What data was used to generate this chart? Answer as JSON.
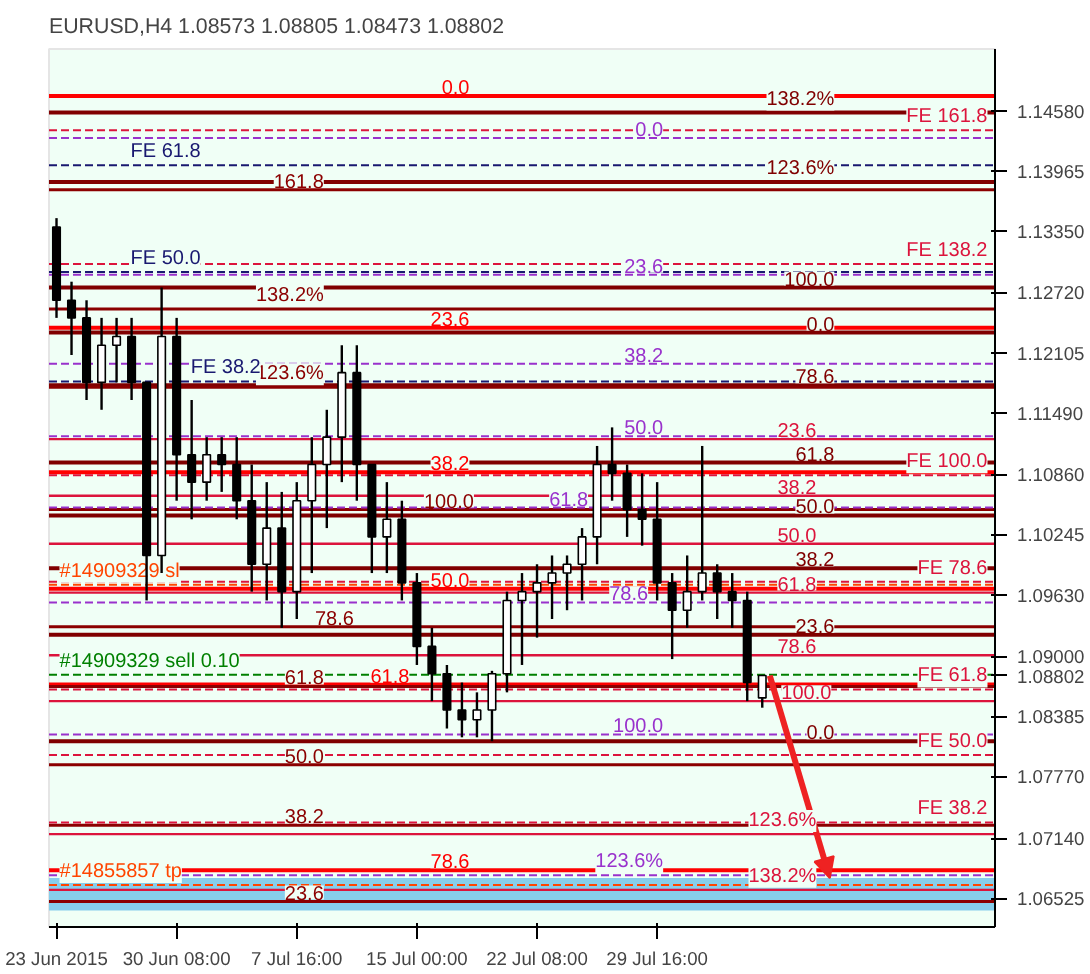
{
  "chart_data": {
    "type": "candlestick",
    "title": "EURUSD,H4  1.08573 1.08805 1.08473 1.08802",
    "categories": [
      "23 Jun 2015",
      null,
      null,
      null,
      null,
      null,
      null,
      null,
      "30 Jun 08:00",
      null,
      null,
      null,
      null,
      null,
      null,
      null,
      "7 Jul 16:00",
      null,
      null,
      null,
      null,
      null,
      null,
      null,
      "15 Jul 00:00",
      null,
      null,
      null,
      null,
      null,
      null,
      null,
      "22 Jul 08:00",
      null,
      null,
      null,
      null,
      null,
      null,
      null,
      "29 Jul 16:00",
      null,
      null,
      null,
      null,
      null,
      null,
      null,
      null,
      null,
      null,
      null,
      null,
      null,
      null,
      null,
      null,
      null,
      null,
      null,
      null,
      null,
      null
    ],
    "ohlc": [
      [
        1.1339,
        1.1348,
        1.1246,
        1.1264
      ],
      [
        1.1264,
        1.1283,
        1.1208,
        1.1246
      ],
      [
        1.1246,
        1.1264,
        1.1162,
        1.118
      ],
      [
        1.118,
        1.1246,
        1.1152,
        1.1218
      ],
      [
        1.1218,
        1.1246,
        1.118,
        1.1227
      ],
      [
        1.1227,
        1.1246,
        1.1162,
        1.118
      ],
      [
        1.118,
        1.118,
        1.0957,
        1.1003
      ],
      [
        1.1003,
        1.1277,
        1.0985,
        1.1227
      ],
      [
        1.1227,
        1.1246,
        1.1059,
        1.1106
      ],
      [
        1.1106,
        1.1162,
        1.104,
        1.1078
      ],
      [
        1.1078,
        1.1124,
        1.1059,
        1.1106
      ],
      [
        1.1106,
        1.1124,
        1.1068,
        1.1096
      ],
      [
        1.1096,
        1.1124,
        1.104,
        1.1059
      ],
      [
        1.1059,
        1.1096,
        1.0966,
        1.0994
      ],
      [
        1.0994,
        1.1078,
        1.0957,
        1.1031
      ],
      [
        1.1031,
        1.1068,
        1.0929,
        1.0966
      ],
      [
        1.0966,
        1.1078,
        1.0938,
        1.1059
      ],
      [
        1.1059,
        1.1124,
        1.0985,
        1.1096
      ],
      [
        1.1096,
        1.1152,
        1.1031,
        1.1124
      ],
      [
        1.1124,
        1.1218,
        1.1078,
        1.119
      ],
      [
        1.119,
        1.1218,
        1.1059,
        1.1096
      ],
      [
        1.1096,
        1.1096,
        1.0985,
        1.1022
      ],
      [
        1.1022,
        1.1078,
        1.0985,
        1.104
      ],
      [
        1.104,
        1.1059,
        1.0957,
        1.0975
      ],
      [
        1.0975,
        1.0985,
        1.0891,
        1.091
      ],
      [
        1.091,
        1.0929,
        1.0854,
        1.0882
      ],
      [
        1.0882,
        1.0891,
        1.0826,
        1.0845
      ],
      [
        1.0845,
        1.0873,
        1.0817,
        1.0835
      ],
      [
        1.0835,
        1.0863,
        1.0817,
        1.0845
      ],
      [
        1.0845,
        1.0885,
        1.0813,
        1.0882
      ],
      [
        1.0882,
        1.0966,
        1.0863,
        1.0957
      ],
      [
        1.0957,
        1.0985,
        1.0891,
        1.0966
      ],
      [
        1.0966,
        1.0994,
        1.0919,
        1.0975
      ],
      [
        1.0975,
        1.1003,
        1.0938,
        1.0985
      ],
      [
        1.0985,
        1.1003,
        1.0947,
        1.0994
      ],
      [
        1.0994,
        1.1031,
        1.0957,
        1.1022
      ],
      [
        1.1022,
        1.1115,
        1.0994,
        1.1096
      ],
      [
        1.1096,
        1.1134,
        1.1059,
        1.1087
      ],
      [
        1.1087,
        1.1096,
        1.1022,
        1.105
      ],
      [
        1.105,
        1.1087,
        1.1013,
        1.104
      ],
      [
        1.104,
        1.1078,
        1.0957,
        1.0975
      ],
      [
        1.0975,
        1.0985,
        1.0897,
        1.0947
      ],
      [
        1.0947,
        1.1003,
        1.0929,
        1.0966
      ],
      [
        1.0966,
        1.1115,
        1.0957,
        1.0985
      ],
      [
        1.0985,
        1.0994,
        1.0938,
        1.0966
      ],
      [
        1.0966,
        1.0985,
        1.0929,
        1.0957
      ],
      [
        1.0957,
        1.0966,
        1.0854,
        1.0873
      ],
      [
        1.08573,
        1.08805,
        1.08473,
        1.08802
      ],
      null,
      null,
      null,
      null,
      null,
      null,
      null,
      null,
      null,
      null,
      null,
      null,
      null,
      null,
      null
    ],
    "ylim": [
      1.0623,
      1.1521
    ],
    "yticks": [
      {
        "value": 1.1458,
        "label": "1.14580"
      },
      {
        "value": 1.13965,
        "label": "1.13965"
      },
      {
        "value": 1.1335,
        "label": "1.13350"
      },
      {
        "value": 1.1272,
        "label": "1.12720"
      },
      {
        "value": 1.12105,
        "label": "1.12105"
      },
      {
        "value": 1.1149,
        "label": "1.11490"
      },
      {
        "value": 1.1086,
        "label": "1.10860"
      },
      {
        "value": 1.10245,
        "label": "1.10245"
      },
      {
        "value": 1.0963,
        "label": "1.09630"
      },
      {
        "value": 1.09,
        "label": "1.09000"
      },
      {
        "value": 1.08802,
        "label": "1.08802"
      },
      {
        "value": 1.08385,
        "label": "1.08385"
      },
      {
        "value": 1.0777,
        "label": "1.07770"
      },
      {
        "value": 1.0714,
        "label": "1.07140"
      },
      {
        "value": 1.06525,
        "label": "1.06525"
      }
    ],
    "grid": false,
    "ref_lines": [
      {
        "axis": "y",
        "value": 1.1456,
        "color": "#800000",
        "line_style": "solid"
      },
      {
        "axis": "y",
        "value": 1.1385,
        "color": "#800000",
        "line_style": "solid"
      },
      {
        "axis": "y",
        "value": 1.1277,
        "color": "#800000",
        "line_style": "solid"
      },
      {
        "axis": "y",
        "value": 1.1231,
        "color": "#800000",
        "line_style": "solid"
      },
      {
        "axis": "y",
        "value": 1.1177,
        "color": "#800000",
        "line_style": "solid"
      },
      {
        "axis": "y",
        "value": 1.1098,
        "color": "#800000",
        "line_style": "solid"
      },
      {
        "axis": "y",
        "value": 1.1044,
        "color": "#800000",
        "line_style": "solid"
      },
      {
        "axis": "y",
        "value": 1.099,
        "color": "#800000",
        "line_style": "solid"
      },
      {
        "axis": "y",
        "value": 1.0922,
        "color": "#800000",
        "line_style": "solid"
      },
      {
        "axis": "y",
        "value": 1.0813,
        "color": "#800000",
        "line_style": "solid"
      },
      {
        "axis": "y",
        "value": 1.1122,
        "color": "#dc143c",
        "line_style": "solid"
      },
      {
        "axis": "y",
        "value": 1.1064,
        "color": "#dc143c",
        "line_style": "solid"
      },
      {
        "axis": "y",
        "value": 1.1015,
        "color": "#dc143c",
        "line_style": "solid"
      },
      {
        "axis": "y",
        "value": 1.0965,
        "color": "#dc143c",
        "line_style": "solid"
      },
      {
        "axis": "y",
        "value": 1.0901,
        "color": "#dc143c",
        "line_style": "solid"
      },
      {
        "axis": "y",
        "value": 1.0854,
        "color": "#dc143c",
        "line_style": "solid"
      },
      {
        "axis": "y",
        "value": 1.0718,
        "color": "#dc143c",
        "line_style": "solid"
      },
      {
        "axis": "y",
        "value": 1.0661,
        "color": "#dc143c",
        "line_style": "solid"
      },
      {
        "axis": "y",
        "value": 1.1473,
        "color": "#ff0000",
        "line_style": "solid"
      },
      {
        "axis": "y",
        "value": 1.1236,
        "color": "#ff0000",
        "line_style": "solid"
      },
      {
        "axis": "y",
        "value": 1.1088,
        "color": "#ff0000",
        "line_style": "solid"
      },
      {
        "axis": "y",
        "value": 1.0969,
        "color": "#ff0000",
        "line_style": "solid"
      },
      {
        "axis": "y",
        "value": 1.0871,
        "color": "#ff0000",
        "line_style": "solid"
      },
      {
        "axis": "y",
        "value": 1.0681,
        "color": "#ff0000",
        "line_style": "solid"
      },
      {
        "axis": "y",
        "value": 1.1377,
        "color": "#8b0000",
        "line_style": "solid"
      },
      {
        "axis": "y",
        "value": 1.1255,
        "color": "#8b0000",
        "line_style": "solid"
      },
      {
        "axis": "y",
        "value": 1.1175,
        "color": "#8b0000",
        "line_style": "solid"
      },
      {
        "axis": "y",
        "value": 1.105,
        "color": "#8b0000",
        "line_style": "solid"
      },
      {
        "axis": "y",
        "value": 1.093,
        "color": "#8b0000",
        "line_style": "solid"
      },
      {
        "axis": "y",
        "value": 1.0869,
        "color": "#8b0000",
        "line_style": "solid"
      },
      {
        "axis": "y",
        "value": 1.0789,
        "color": "#8b0000",
        "line_style": "solid"
      },
      {
        "axis": "y",
        "value": 1.0727,
        "color": "#8b0000",
        "line_style": "solid"
      },
      {
        "axis": "y",
        "value": 1.0649,
        "color": "#8b0000",
        "line_style": "solid"
      },
      {
        "axis": "y",
        "value": 1.143,
        "color": "#9932cc",
        "line_style": "dashed"
      },
      {
        "axis": "y",
        "value": 1.129,
        "color": "#9932cc",
        "line_style": "dashed"
      },
      {
        "axis": "y",
        "value": 1.1199,
        "color": "#9932cc",
        "line_style": "dashed"
      },
      {
        "axis": "y",
        "value": 1.1125,
        "color": "#9932cc",
        "line_style": "dashed"
      },
      {
        "axis": "y",
        "value": 1.1052,
        "color": "#9932cc",
        "line_style": "dashed"
      },
      {
        "axis": "y",
        "value": 1.0955,
        "color": "#9932cc",
        "line_style": "dashed"
      },
      {
        "axis": "y",
        "value": 1.082,
        "color": "#9932cc",
        "line_style": "dashed"
      },
      {
        "axis": "y",
        "value": 1.0676,
        "color": "#9932cc",
        "line_style": "dashed"
      },
      {
        "axis": "y",
        "value": 1.1438,
        "color": "#dc143c",
        "line_style": "dashed"
      },
      {
        "axis": "y",
        "value": 1.1301,
        "color": "#dc143c",
        "line_style": "dashed"
      },
      {
        "axis": "y",
        "value": 1.1085,
        "color": "#dc143c",
        "line_style": "dashed"
      },
      {
        "axis": "y",
        "value": 1.0976,
        "color": "#dc143c",
        "line_style": "dashed"
      },
      {
        "axis": "y",
        "value": 1.0866,
        "color": "#dc143c",
        "line_style": "dashed"
      },
      {
        "axis": "y",
        "value": 1.0799,
        "color": "#dc143c",
        "line_style": "dashed"
      },
      {
        "axis": "y",
        "value": 1.073,
        "color": "#dc143c",
        "line_style": "dashed"
      },
      {
        "axis": "y",
        "value": 1.1402,
        "color": "#191970",
        "line_style": "dashed"
      },
      {
        "axis": "y",
        "value": 1.1293,
        "color": "#191970",
        "line_style": "dashed"
      },
      {
        "axis": "y",
        "value": 1.1181,
        "color": "#191970",
        "line_style": "dashed"
      },
      {
        "axis": "y",
        "value": 1.0973,
        "color": "#ff4500",
        "line_style": "dashed"
      },
      {
        "axis": "y",
        "value": 1.0666,
        "color": "#ff4500",
        "line_style": "dashed"
      },
      {
        "axis": "y",
        "value": 1.0881,
        "color": "#008000",
        "line_style": "dashed"
      }
    ],
    "bands": [
      {
        "axis": "y",
        "from": 1.064,
        "to": 1.0673,
        "color": "#87ceeb"
      }
    ],
    "annotations": [
      {
        "text": "138.2%",
        "y": 1.1456
      },
      {
        "text": "123.6%",
        "y": 1.1385
      },
      {
        "text": "100.0",
        "y": 1.1277
      },
      {
        "text": "0.0",
        "y": 1.1231
      },
      {
        "text": "78.6",
        "y": 1.1177
      },
      {
        "text": "61.8",
        "y": 1.1098
      },
      {
        "text": "50.0",
        "y": 1.1044
      },
      {
        "text": "38.2",
        "y": 1.099
      },
      {
        "text": "23.6",
        "y": 1.0922
      },
      {
        "text": "0.0",
        "y": 1.0813
      },
      {
        "text": "23.6",
        "y": 1.1122
      },
      {
        "text": "38.2",
        "y": 1.1064
      },
      {
        "text": "50.0",
        "y": 1.1015
      },
      {
        "text": "61.8",
        "y": 1.0965
      },
      {
        "text": "78.6",
        "y": 1.0901
      },
      {
        "text": "100.0",
        "y": 1.0854
      },
      {
        "text": "123.6%",
        "y": 1.0718
      },
      {
        "text": "138.2%",
        "y": 1.0661
      },
      {
        "text": "0.0",
        "y": 1.1473
      },
      {
        "text": "23.6",
        "y": 1.1236
      },
      {
        "text": "38.2",
        "y": 1.1088
      },
      {
        "text": "50.0",
        "y": 1.0969
      },
      {
        "text": "61.8",
        "y": 1.0871
      },
      {
        "text": "78.6",
        "y": 1.0681
      },
      {
        "text": "161.8",
        "y": 1.1377
      },
      {
        "text": "138.2%",
        "y": 1.1255
      },
      {
        "text": "123.6%",
        "y": 1.1175
      },
      {
        "text": "100.0",
        "y": 1.105
      },
      {
        "text": "78.6",
        "y": 1.093
      },
      {
        "text": "61.8",
        "y": 1.0869
      },
      {
        "text": "50.0",
        "y": 1.0789
      },
      {
        "text": "38.2",
        "y": 1.0727
      },
      {
        "text": "23.6",
        "y": 1.0649
      },
      {
        "text": "0.0",
        "y": 1.143
      },
      {
        "text": "23.6",
        "y": 1.129
      },
      {
        "text": "38.2",
        "y": 1.1199
      },
      {
        "text": "50.0",
        "y": 1.1125
      },
      {
        "text": "61.8",
        "y": 1.1052
      },
      {
        "text": "78.6",
        "y": 1.0955
      },
      {
        "text": "100.0",
        "y": 1.082
      },
      {
        "text": "123.6%",
        "y": 1.0676
      },
      {
        "text": "FE 161.8",
        "y": 1.1438
      },
      {
        "text": "FE 138.2",
        "y": 1.1301
      },
      {
        "text": "FE 100.0",
        "y": 1.1085
      },
      {
        "text": "FE 78.6",
        "y": 1.0976
      },
      {
        "text": "FE 61.8",
        "y": 1.0866
      },
      {
        "text": "FE 50.0",
        "y": 1.0799
      },
      {
        "text": "FE 38.2",
        "y": 1.073
      },
      {
        "text": "FE 61.8",
        "y": 1.1402
      },
      {
        "text": "FE 50.0",
        "y": 1.1293
      },
      {
        "text": "FE 38.2",
        "y": 1.1181
      },
      {
        "text": "#14909329 sl",
        "y": 1.0973
      },
      {
        "text": "#14855857 tp",
        "y": 1.0666
      },
      {
        "text": "#14909329 sell 0.10",
        "y": 1.0881
      }
    ]
  }
}
